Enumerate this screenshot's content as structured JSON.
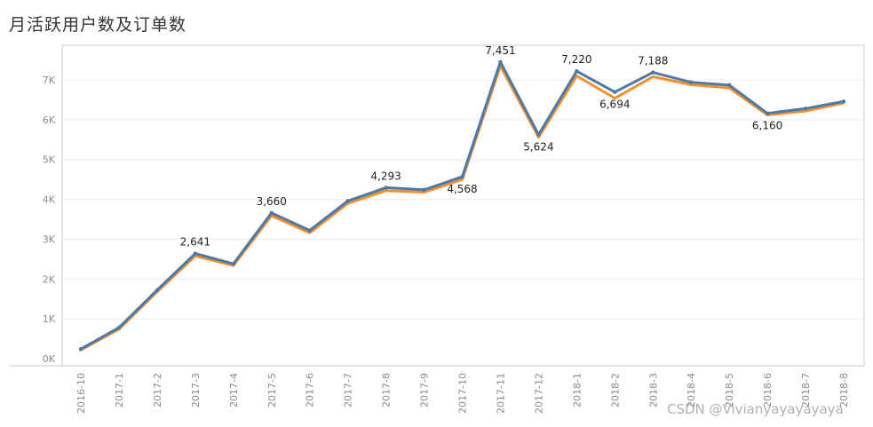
{
  "title": "月活跃用户数及订单数",
  "watermark": "CSDN @Vivianyayayayaya",
  "colors": {
    "active_users": "#4e79a7",
    "orders": "#f28e2b",
    "grid": "#ececec",
    "axis": "#c8c8c8",
    "tick_text": "#8a8a8a",
    "label_text": "#222222"
  },
  "chart_data": {
    "type": "line",
    "title": "月活跃用户数及订单数",
    "xlabel": "",
    "ylabel": "",
    "ylim": [
      0,
      8000
    ],
    "yticks": [
      0,
      1000,
      2000,
      3000,
      4000,
      5000,
      6000,
      7000
    ],
    "ytick_labels": [
      "0K",
      "1K",
      "2K",
      "3K",
      "4K",
      "5K",
      "6K",
      "7K"
    ],
    "grid": true,
    "categories": [
      "2016-10",
      "2017-1",
      "2017-2",
      "2017-3",
      "2017-4",
      "2017-5",
      "2017-6",
      "2017-7",
      "2017-8",
      "2017-9",
      "2017-10",
      "2017-11",
      "2017-12",
      "2018-1",
      "2018-2",
      "2018-3",
      "2018-4",
      "2018-5",
      "2018-6",
      "2018-7",
      "2018-8"
    ],
    "series": [
      {
        "key": "active_users",
        "values": [
          240,
          780,
          1720,
          2641,
          2380,
          3660,
          3220,
          3960,
          4293,
          4240,
          4568,
          7451,
          5624,
          7220,
          6694,
          7188,
          6940,
          6870,
          6160,
          6280,
          6460
        ],
        "labels": [
          "",
          "",
          "",
          "2,641",
          "",
          "3,660",
          "",
          "",
          "4,293",
          "",
          "4,568",
          "7,451",
          "5,624",
          "7,220",
          "6,694",
          "7,188",
          "",
          "",
          "6,160",
          "",
          ""
        ],
        "label_pos": [
          "",
          "",
          "",
          "above",
          "",
          "above",
          "",
          "",
          "above",
          "",
          "below",
          "above",
          "below",
          "above",
          "below",
          "above",
          "",
          "",
          "below",
          "",
          ""
        ]
      },
      {
        "key": "orders",
        "values": [
          220,
          740,
          1680,
          2580,
          2340,
          3590,
          3160,
          3900,
          4220,
          4180,
          4500,
          7350,
          5560,
          7100,
          6540,
          7080,
          6880,
          6800,
          6120,
          6220,
          6420
        ]
      }
    ]
  }
}
